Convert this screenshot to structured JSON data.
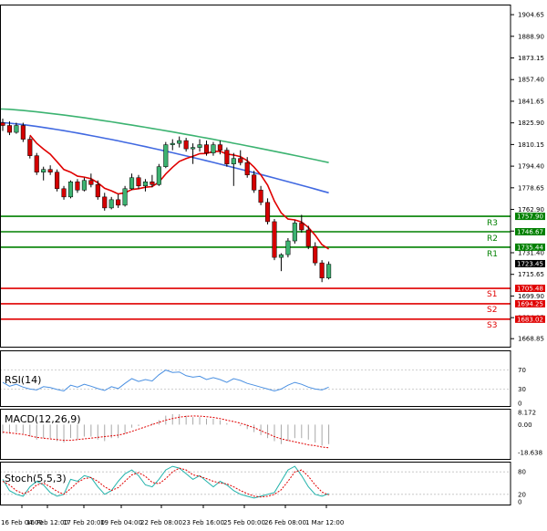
{
  "chart_data": {
    "type": "candlestick",
    "price_axis": {
      "range": [
        1663.0,
        1912.0
      ],
      "ticks": [
        "1904.65",
        "1888.90",
        "1873.15",
        "1857.40",
        "1841.65",
        "1825.90",
        "1810.15",
        "1794.40",
        "1778.65",
        "1762.90",
        "1747.15",
        "1731.40",
        "1715.65",
        "1699.90",
        "1684.15",
        "1668.85"
      ]
    },
    "time_axis": {
      "ticks": [
        "16 Feb 04:00",
        "16 Feb 12:00",
        "17 Feb 20:00",
        "19 Feb 04:00",
        "22 Feb 08:00",
        "23 Feb 16:00",
        "25 Feb 00:00",
        "26 Feb 08:00",
        "1 Mar 12:00"
      ]
    },
    "current_price": {
      "value": 1723.45,
      "label": "1723.45"
    },
    "levels": [
      {
        "name": "R3",
        "value": 1757.9,
        "label": "1757.90",
        "color": "#008000"
      },
      {
        "name": "R2",
        "value": 1746.67,
        "label": "1746.67",
        "color": "#008000"
      },
      {
        "name": "R1",
        "value": 1735.44,
        "label": "1735.44",
        "color": "#008000"
      },
      {
        "name": "S1",
        "value": 1705.48,
        "label": "1705.48",
        "color": "#e00000"
      },
      {
        "name": "S2",
        "value": 1694.25,
        "label": "1694.25",
        "color": "#e00000"
      },
      {
        "name": "S3",
        "value": 1683.02,
        "label": "1683.02",
        "color": "#e00000"
      }
    ],
    "candles": [
      [
        1826,
        1829,
        1820,
        1824
      ],
      [
        1824,
        1827,
        1817,
        1819
      ],
      [
        1819,
        1826,
        1818,
        1824
      ],
      [
        1824,
        1826,
        1812,
        1814
      ],
      [
        1814,
        1816,
        1800,
        1802
      ],
      [
        1802,
        1804,
        1788,
        1790
      ],
      [
        1790,
        1794,
        1784,
        1792
      ],
      [
        1792,
        1795,
        1788,
        1790
      ],
      [
        1790,
        1792,
        1776,
        1778
      ],
      [
        1778,
        1780,
        1770,
        1772
      ],
      [
        1772,
        1784,
        1771,
        1783
      ],
      [
        1783,
        1785,
        1775,
        1777
      ],
      [
        1777,
        1786,
        1776,
        1784
      ],
      [
        1784,
        1789,
        1779,
        1781
      ],
      [
        1781,
        1784,
        1770,
        1772
      ],
      [
        1772,
        1775,
        1762,
        1764
      ],
      [
        1764,
        1772,
        1763,
        1770
      ],
      [
        1770,
        1774,
        1764,
        1766
      ],
      [
        1766,
        1780,
        1765,
        1778
      ],
      [
        1778,
        1789,
        1777,
        1786
      ],
      [
        1786,
        1788,
        1778,
        1780
      ],
      [
        1780,
        1785,
        1776,
        1783
      ],
      [
        1783,
        1788,
        1779,
        1781
      ],
      [
        1781,
        1796,
        1780,
        1794
      ],
      [
        1794,
        1812,
        1793,
        1810
      ],
      [
        1810,
        1814,
        1806,
        1811
      ],
      [
        1811,
        1816,
        1808,
        1813
      ],
      [
        1813,
        1815,
        1805,
        1807
      ],
      [
        1807,
        1811,
        1796,
        1808
      ],
      [
        1808,
        1814,
        1805,
        1810
      ],
      [
        1810,
        1813,
        1802,
        1804
      ],
      [
        1804,
        1812,
        1802,
        1810
      ],
      [
        1810,
        1813,
        1803,
        1806
      ],
      [
        1806,
        1808,
        1794,
        1796
      ],
      [
        1796,
        1804,
        1780,
        1800
      ],
      [
        1800,
        1806,
        1795,
        1797
      ],
      [
        1797,
        1801,
        1786,
        1788
      ],
      [
        1788,
        1791,
        1775,
        1777
      ],
      [
        1777,
        1780,
        1766,
        1768
      ],
      [
        1768,
        1771,
        1752,
        1754
      ],
      [
        1754,
        1756,
        1726,
        1728
      ],
      [
        1728,
        1731,
        1718,
        1730
      ],
      [
        1730,
        1742,
        1728,
        1740
      ],
      [
        1740,
        1755,
        1738,
        1753
      ],
      [
        1753,
        1759,
        1746,
        1748
      ],
      [
        1748,
        1751,
        1734,
        1736
      ],
      [
        1736,
        1739,
        1722,
        1724
      ],
      [
        1724,
        1726,
        1710,
        1713
      ],
      [
        1713,
        1725,
        1712,
        1723
      ]
    ],
    "ma": [
      {
        "name": "MA slow",
        "color": "#3cb371",
        "from": 1836,
        "to": 1797
      },
      {
        "name": "MA mid",
        "color": "#4169e1",
        "from": 1826,
        "to": 1775
      },
      {
        "name": "MA fast",
        "color": "#e00000"
      }
    ],
    "rsi": {
      "label": "RSI(14)",
      "ticks": [
        "70",
        "30",
        "0"
      ],
      "values": [
        44,
        36,
        40,
        34,
        30,
        28,
        35,
        33,
        29,
        26,
        38,
        34,
        40,
        36,
        31,
        27,
        35,
        31,
        42,
        52,
        46,
        50,
        47,
        60,
        70,
        65,
        66,
        58,
        55,
        57,
        50,
        54,
        50,
        44,
        52,
        48,
        42,
        38,
        34,
        30,
        26,
        30,
        38,
        44,
        40,
        34,
        30,
        28,
        34
      ]
    },
    "macd": {
      "label": "MACD(12,26,9)",
      "ticks": [
        "8.172",
        "0.00",
        "-18.638"
      ],
      "hist": [
        -6,
        -6,
        -5,
        -6,
        -8,
        -10,
        -9,
        -9,
        -11,
        -12,
        -9,
        -10,
        -8,
        -8,
        -10,
        -11,
        -9,
        -9,
        -6,
        -2,
        -1,
        0,
        1,
        3,
        6,
        7,
        7,
        6,
        5,
        5,
        4,
        4,
        3,
        1,
        0,
        -1,
        -3,
        -5,
        -7,
        -9,
        -11,
        -13,
        -11,
        -9,
        -9,
        -10,
        -12,
        -14,
        -13
      ],
      "signal": [
        -5,
        -5.5,
        -6,
        -6.5,
        -7.5,
        -8.5,
        -9,
        -9.5,
        -10,
        -10.5,
        -10.5,
        -10,
        -9.5,
        -9,
        -8.5,
        -8,
        -7.5,
        -7,
        -6,
        -4.5,
        -3,
        -1.5,
        0,
        1.5,
        3,
        4,
        5,
        5.5,
        5.8,
        5.7,
        5.3,
        4.8,
        4,
        3,
        2,
        1,
        -0.5,
        -2,
        -4,
        -6,
        -8,
        -9.5,
        -10.5,
        -11.5,
        -12.5,
        -13.5,
        -14,
        -15,
        -15.5
      ]
    },
    "stoch": {
      "label": "Stoch(5,5,3)",
      "ticks": [
        "80",
        "20",
        "0"
      ],
      "k": [
        60,
        30,
        20,
        15,
        40,
        55,
        45,
        25,
        15,
        20,
        60,
        55,
        70,
        65,
        40,
        20,
        30,
        55,
        75,
        85,
        70,
        45,
        40,
        60,
        85,
        95,
        90,
        75,
        60,
        70,
        55,
        40,
        55,
        45,
        30,
        20,
        15,
        10,
        15,
        20,
        25,
        55,
        85,
        95,
        70,
        40,
        20,
        15,
        22
      ],
      "d": [
        55,
        45,
        30,
        22,
        28,
        45,
        50,
        40,
        28,
        20,
        35,
        52,
        62,
        65,
        55,
        40,
        30,
        38,
        55,
        72,
        78,
        68,
        52,
        48,
        62,
        80,
        90,
        85,
        72,
        68,
        62,
        55,
        50,
        48,
        40,
        30,
        22,
        15,
        13,
        15,
        20,
        32,
        55,
        80,
        85,
        68,
        45,
        26,
        18
      ]
    }
  }
}
